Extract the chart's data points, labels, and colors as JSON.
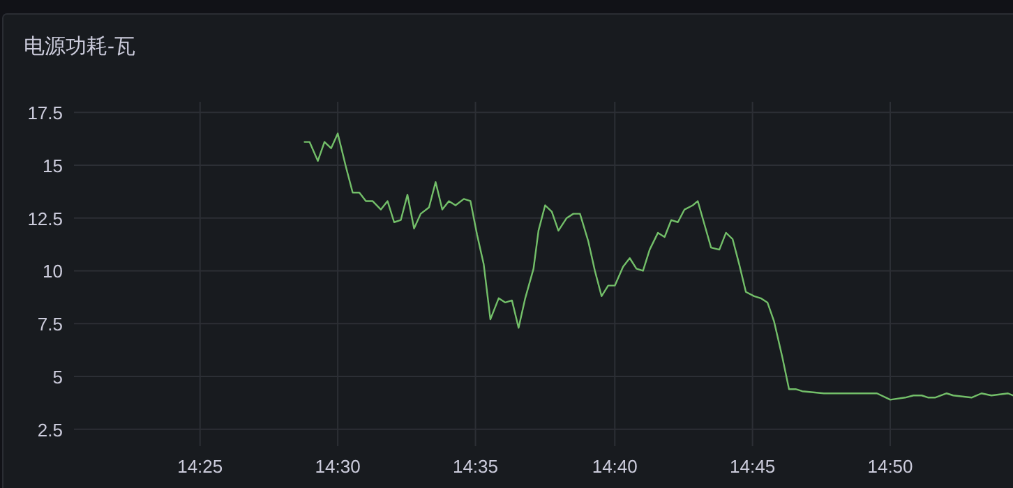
{
  "chart_data": {
    "type": "line",
    "title": "电源功耗-瓦",
    "x": [
      14.48,
      14.483,
      14.488,
      14.492,
      14.496,
      14.5,
      14.505,
      14.509,
      14.513,
      14.517,
      14.521,
      14.526,
      14.53,
      14.534,
      14.538,
      14.542,
      14.546,
      14.55,
      14.555,
      14.559,
      14.563,
      14.567,
      14.571,
      14.576,
      14.58,
      14.584,
      14.588,
      14.592,
      14.597,
      14.601,
      14.605,
      14.609,
      14.613,
      14.618,
      14.621,
      14.625,
      14.629,
      14.633,
      14.638,
      14.642,
      14.646,
      14.651,
      14.655,
      14.659,
      14.663,
      14.667,
      14.672,
      14.676,
      14.68,
      14.684,
      14.688,
      14.693,
      14.697,
      14.701,
      14.705,
      14.709,
      14.714,
      14.717,
      14.721,
      14.725,
      14.73,
      14.734,
      14.738,
      14.742,
      14.746,
      14.751,
      14.755,
      14.759,
      14.763,
      14.768,
      14.772,
      14.776,
      14.78,
      14.793,
      14.797,
      14.825,
      14.833,
      14.842,
      14.847,
      14.852,
      14.856,
      14.86,
      14.867,
      14.871,
      14.882,
      14.888,
      14.894,
      14.904,
      14.907
    ],
    "series": [
      {
        "color": "#73bf69",
        "values": [
          16.1,
          16.1,
          15.2,
          16.1,
          15.8,
          16.5,
          14.9,
          13.7,
          13.7,
          13.3,
          13.3,
          12.9,
          13.3,
          12.3,
          12.4,
          13.6,
          12.0,
          12.7,
          13.0,
          14.2,
          12.9,
          13.3,
          13.1,
          13.4,
          13.3,
          11.7,
          10.3,
          7.7,
          8.7,
          8.5,
          8.6,
          7.3,
          8.7,
          10.1,
          11.9,
          13.1,
          12.8,
          11.9,
          12.5,
          12.7,
          12.7,
          11.4,
          10.0,
          8.8,
          9.3,
          9.3,
          10.2,
          10.6,
          10.1,
          10.0,
          11.0,
          11.8,
          11.6,
          12.4,
          12.3,
          12.9,
          13.1,
          13.3,
          12.2,
          11.1,
          11.0,
          11.8,
          11.5,
          10.3,
          9.0,
          8.8,
          8.7,
          8.5,
          7.6,
          5.9,
          4.4,
          4.4,
          4.3,
          4.2,
          4.2,
          4.2,
          3.9,
          4.0,
          4.1,
          4.1,
          4.0,
          4.0,
          4.2,
          4.1,
          4.0,
          4.2,
          4.1,
          4.2,
          4.1
        ]
      }
    ],
    "xlim": [
      14.341,
      14.907
    ],
    "xticks": [
      {
        "value": 14.417,
        "label": "14:25"
      },
      {
        "value": 14.5,
        "label": "14:30"
      },
      {
        "value": 14.583,
        "label": "14:35"
      },
      {
        "value": 14.667,
        "label": "14:40"
      },
      {
        "value": 14.75,
        "label": "14:45"
      },
      {
        "value": 14.833,
        "label": "14:50"
      }
    ],
    "ylim": [
      1.7,
      18
    ],
    "yticks": [
      2.5,
      5,
      7.5,
      10,
      12.5,
      15,
      17.5
    ],
    "grid": true
  }
}
